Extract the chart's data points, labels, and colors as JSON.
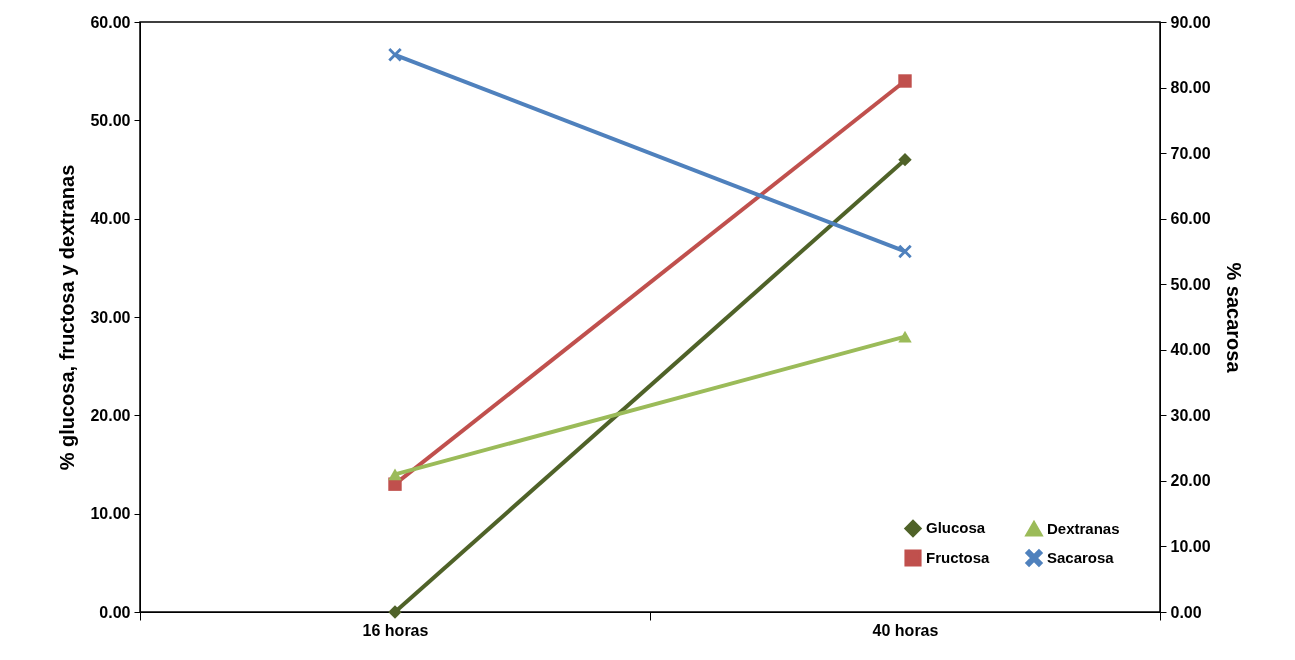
{
  "chart_data": {
    "type": "line",
    "categories": [
      "16 horas",
      "40 horas"
    ],
    "ylabel": "% glucosa, fructosa y dextranas",
    "y2label": "% sacarosa",
    "ylim": [
      0,
      60
    ],
    "yticks": [
      {
        "value": 0,
        "label": "0.00"
      },
      {
        "value": 10,
        "label": "10.00"
      },
      {
        "value": 20,
        "label": "20.00"
      },
      {
        "value": 30,
        "label": "30.00"
      },
      {
        "value": 40,
        "label": "40.00"
      },
      {
        "value": 50,
        "label": "50.00"
      },
      {
        "value": 60,
        "label": "60.00"
      }
    ],
    "y2lim": [
      0,
      90
    ],
    "y2ticks": [
      {
        "value": 0,
        "label": "0.00"
      },
      {
        "value": 10,
        "label": "10.00"
      },
      {
        "value": 20,
        "label": "20.00"
      },
      {
        "value": 30,
        "label": "30.00"
      },
      {
        "value": 40,
        "label": "40.00"
      },
      {
        "value": 50,
        "label": "50.00"
      },
      {
        "value": 60,
        "label": "60.00"
      },
      {
        "value": 70,
        "label": "70.00"
      },
      {
        "value": 80,
        "label": "80.00"
      },
      {
        "value": 90,
        "label": "90.00"
      }
    ],
    "series": [
      {
        "name": "Glucosa",
        "color": "#4f6228",
        "marker": "diamond",
        "values": [
          0,
          46
        ]
      },
      {
        "name": "Fructosa",
        "color": "#c0504d",
        "marker": "square",
        "values": [
          13,
          54
        ]
      },
      {
        "name": "Dextranas",
        "color": "#9bbb59",
        "marker": "triangle",
        "values": [
          14,
          28
        ]
      },
      {
        "name": "Sacarosa",
        "color": "#4f81bd",
        "marker": "cross",
        "axis": "y2",
        "values": [
          85,
          55
        ]
      }
    ],
    "grid": false,
    "legend": "bottom right",
    "line_style": "solid"
  }
}
